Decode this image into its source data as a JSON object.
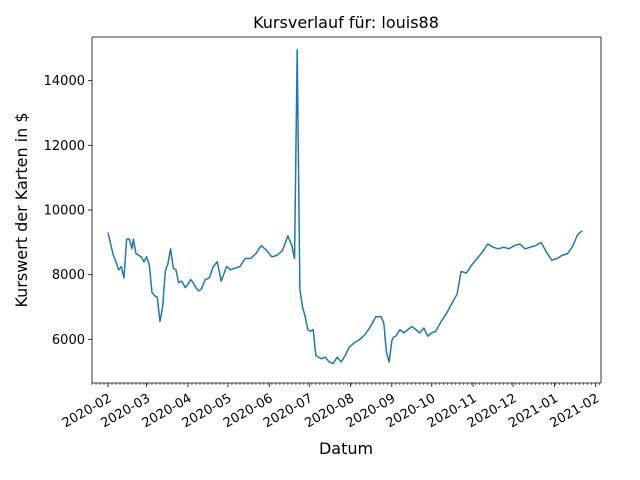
{
  "chart_data": {
    "type": "line",
    "title": "Kursverlauf für: louis88",
    "xlabel": "Datum",
    "ylabel": "Kurswert der Karten in $",
    "xlim": [
      "2020-01-20",
      "2021-02-05"
    ],
    "ylim": [
      4650,
      15350
    ],
    "x_ticks": [
      "2020-02-01",
      "2020-03-01",
      "2020-04-01",
      "2020-05-01",
      "2020-06-01",
      "2020-07-01",
      "2020-08-01",
      "2020-09-01",
      "2020-10-01",
      "2020-11-01",
      "2020-12-01",
      "2021-01-01",
      "2021-02-01"
    ],
    "x_tick_labels": [
      "2020-02",
      "2020-03",
      "2020-04",
      "2020-05",
      "2020-06",
      "2020-07",
      "2020-08",
      "2020-09",
      "2020-10",
      "2020-11",
      "2020-12",
      "2021-01",
      "2021-02"
    ],
    "y_ticks": [
      6000,
      8000,
      10000,
      12000,
      14000
    ],
    "y_tick_labels": [
      "6000",
      "8000",
      "10000",
      "12000",
      "14000"
    ],
    "grid": false,
    "color": "#1f77b4",
    "series": [
      {
        "x": [
          "2020-02-01",
          "2020-02-03",
          "2020-02-05",
          "2020-02-07",
          "2020-02-09",
          "2020-02-11",
          "2020-02-13",
          "2020-02-15",
          "2020-02-17",
          "2020-02-19",
          "2020-02-20",
          "2020-02-22",
          "2020-02-24",
          "2020-02-26",
          "2020-02-28",
          "2020-03-01",
          "2020-03-03",
          "2020-03-05",
          "2020-03-07",
          "2020-03-09",
          "2020-03-11",
          "2020-03-13",
          "2020-03-15",
          "2020-03-17",
          "2020-03-19",
          "2020-03-21",
          "2020-03-23",
          "2020-03-25",
          "2020-03-27",
          "2020-03-28",
          "2020-03-30",
          "2020-04-01",
          "2020-04-03",
          "2020-04-05",
          "2020-04-07",
          "2020-04-09",
          "2020-04-11",
          "2020-04-14",
          "2020-04-17",
          "2020-04-20",
          "2020-04-23",
          "2020-04-26",
          "2020-04-30",
          "2020-05-03",
          "2020-05-06",
          "2020-05-10",
          "2020-05-14",
          "2020-05-18",
          "2020-05-22",
          "2020-05-26",
          "2020-05-30",
          "2020-06-03",
          "2020-06-07",
          "2020-06-11",
          "2020-06-15",
          "2020-06-18",
          "2020-06-20",
          "2020-06-22",
          "2020-06-24",
          "2020-06-26",
          "2020-06-28",
          "2020-06-30",
          "2020-07-02",
          "2020-07-04",
          "2020-07-06",
          "2020-07-08",
          "2020-07-10",
          "2020-07-13",
          "2020-07-16",
          "2020-07-19",
          "2020-07-22",
          "2020-07-25",
          "2020-07-28",
          "2020-07-31",
          "2020-08-04",
          "2020-08-08",
          "2020-08-12",
          "2020-08-16",
          "2020-08-20",
          "2020-08-24",
          "2020-08-26",
          "2020-08-28",
          "2020-08-30",
          "2020-09-01",
          "2020-09-02",
          "2020-09-04",
          "2020-09-07",
          "2020-09-10",
          "2020-09-13",
          "2020-09-16",
          "2020-09-19",
          "2020-09-22",
          "2020-09-25",
          "2020-09-28",
          "2020-10-01",
          "2020-10-04",
          "2020-10-08",
          "2020-10-12",
          "2020-10-16",
          "2020-10-20",
          "2020-10-23",
          "2020-10-27",
          "2020-10-31",
          "2020-11-04",
          "2020-11-08",
          "2020-11-12",
          "2020-11-16",
          "2020-11-20",
          "2020-11-24",
          "2020-11-28",
          "2020-12-02",
          "2020-12-06",
          "2020-12-10",
          "2020-12-14",
          "2020-12-18",
          "2020-12-22",
          "2020-12-26",
          "2020-12-30",
          "2021-01-03",
          "2021-01-07",
          "2021-01-11",
          "2021-01-15",
          "2021-01-18",
          "2021-01-20",
          "2021-01-22"
        ],
        "y": [
          9300,
          8950,
          8600,
          8400,
          8150,
          8250,
          7900,
          9100,
          9100,
          8800,
          9100,
          8650,
          8600,
          8550,
          8400,
          8550,
          8300,
          7450,
          7350,
          7300,
          6550,
          7000,
          8100,
          8350,
          8800,
          8200,
          8150,
          7750,
          7800,
          7750,
          7600,
          7700,
          7850,
          7750,
          7600,
          7500,
          7550,
          7850,
          7900,
          8250,
          8400,
          7800,
          8250,
          8150,
          8200,
          8250,
          8500,
          8500,
          8650,
          8900,
          8750,
          8550,
          8600,
          8750,
          9200,
          8900,
          8500,
          14950,
          7550,
          7000,
          6700,
          6300,
          6250,
          6300,
          5500,
          5450,
          5400,
          5450,
          5300,
          5250,
          5450,
          5300,
          5500,
          5750,
          5900,
          6000,
          6150,
          6400,
          6700,
          6700,
          6500,
          5600,
          5300,
          5950,
          6050,
          6100,
          6300,
          6200,
          6300,
          6400,
          6300,
          6200,
          6350,
          6100,
          6200,
          6250,
          6550,
          6800,
          7100,
          7400,
          8100,
          8050,
          8300,
          8500,
          8700,
          8950,
          8850,
          8800,
          8850,
          8800,
          8900,
          8950,
          8800,
          8850,
          8900,
          9000,
          8700,
          8450,
          8500,
          8600,
          8650,
          8900,
          9200,
          9300,
          9350
        ]
      }
    ]
  }
}
